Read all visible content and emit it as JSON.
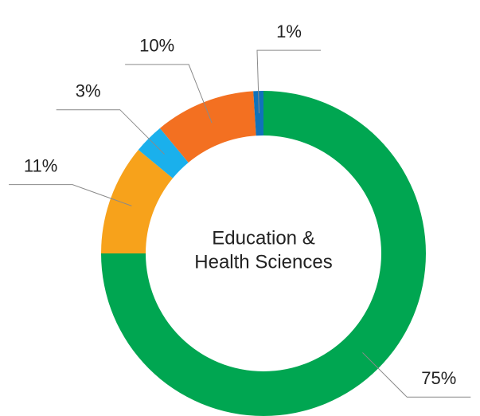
{
  "chart_data": {
    "type": "donut",
    "center_label": [
      "Education &",
      "Health Sciences"
    ],
    "values": [
      75,
      11,
      3,
      10,
      1
    ],
    "value_labels": [
      "75%",
      "11%",
      "3%",
      "10%",
      "1%"
    ],
    "colors": [
      "#00a651",
      "#f7a21b",
      "#1ab0ec",
      "#f37021",
      "#1072ba"
    ]
  }
}
